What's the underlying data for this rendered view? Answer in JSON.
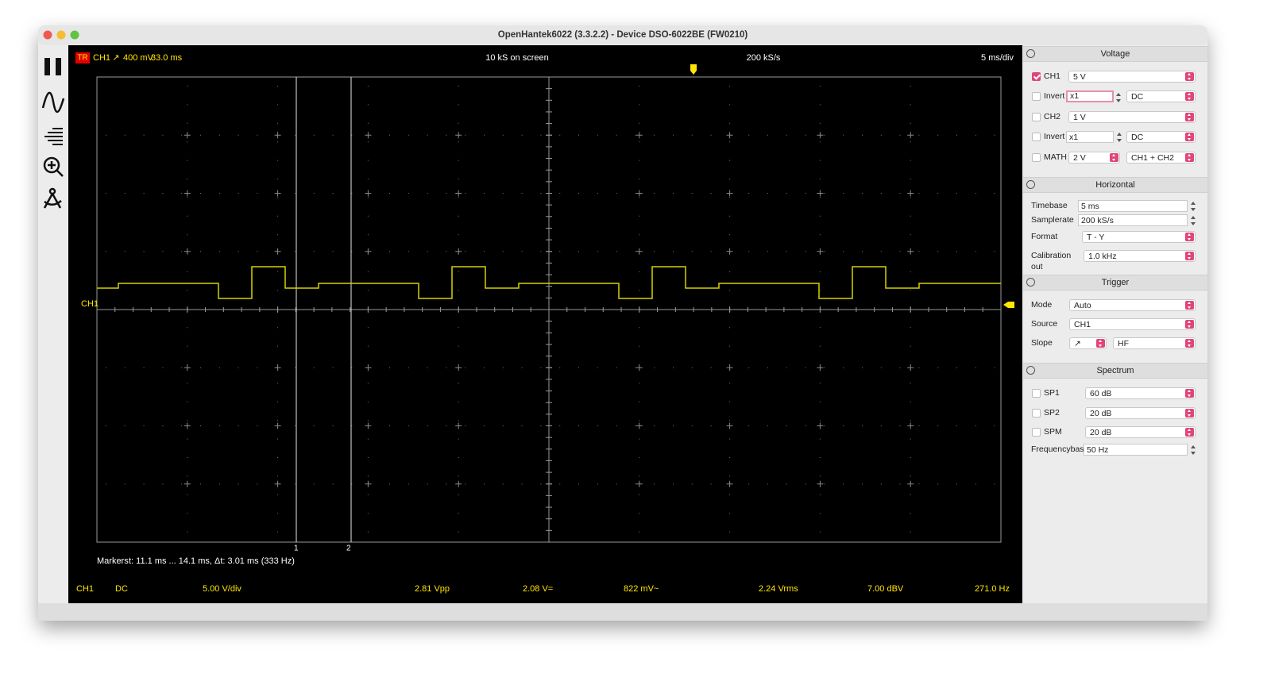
{
  "window_title": "OpenHantek6022 (3.3.2.2) - Device DSO-6022BE (FW0210)",
  "scope": {
    "trigger_badge": "TR",
    "trigger_channel": "CH1",
    "trigger_slope": "↗",
    "trigger_level": "400 mV",
    "trigger_position": "33.0 ms",
    "samples_on_screen": "10 kS on screen",
    "samplerate": "200 kS/s",
    "timebase": "5 ms/div",
    "channel_marker": "CH1",
    "marker_numbers": [
      "1",
      "2"
    ],
    "markers_label": "Markers",
    "markers_info": "t: 11.1 ms ... 14.1 ms,  Δt: 3.01 ms (333 Hz)"
  },
  "measurements": [
    "CH1",
    "DC",
    "5.00 V/div",
    "2.81 Vpp",
    "2.08 V=",
    "822 mV~",
    "2.24 Vrms",
    "7.00 dBV",
    "271.0 Hz"
  ],
  "panels": [
    {
      "title": "Voltage",
      "rows": [
        [
          {
            "type": "checkbox",
            "label": "CH1",
            "checked": true
          },
          {
            "type": "combo",
            "value": "5 V"
          }
        ],
        [
          {
            "type": "checkbox",
            "label": "Invert",
            "checked": false
          },
          {
            "type": "spin",
            "value": "x1",
            "focused": true
          },
          {
            "type": "combo",
            "value": "DC"
          }
        ],
        [
          {
            "type": "checkbox",
            "label": "CH2",
            "checked": false
          },
          {
            "type": "combo",
            "value": "1 V"
          }
        ],
        [
          {
            "type": "checkbox",
            "label": "Invert",
            "checked": false
          },
          {
            "type": "spin",
            "value": "x1"
          },
          {
            "type": "combo",
            "value": "DC"
          }
        ],
        [
          {
            "type": "checkbox",
            "label": "MATH",
            "checked": false
          },
          {
            "type": "combo",
            "value": "2 V"
          },
          {
            "type": "combo",
            "value": "CH1 + CH2"
          }
        ]
      ]
    },
    {
      "title": "Horizontal",
      "rows": [
        [
          {
            "type": "label",
            "text": "Timebase"
          },
          {
            "type": "spin",
            "value": "5 ms"
          }
        ],
        [
          {
            "type": "label",
            "text": "Samplerate"
          },
          {
            "type": "spin",
            "value": "200 kS/s"
          }
        ],
        [
          {
            "type": "label",
            "text": "Format"
          },
          {
            "type": "combo",
            "value": "T - Y"
          }
        ],
        [
          {
            "type": "label",
            "text": "Calibration out"
          },
          {
            "type": "combo",
            "value": "1.0 kHz"
          }
        ]
      ]
    },
    {
      "title": "Trigger",
      "rows": [
        [
          {
            "type": "label",
            "text": "Mode"
          },
          {
            "type": "combo",
            "value": "Auto"
          }
        ],
        [
          {
            "type": "label",
            "text": "Source"
          },
          {
            "type": "combo",
            "value": "CH1"
          }
        ],
        [
          {
            "type": "label",
            "text": "Slope"
          },
          {
            "type": "combo",
            "value": "↗"
          },
          {
            "type": "combo",
            "value": "HF"
          }
        ]
      ]
    },
    {
      "title": "Spectrum",
      "rows": [
        [
          {
            "type": "checkbox",
            "label": "SP1",
            "checked": false
          },
          {
            "type": "combo",
            "value": "60 dB"
          }
        ],
        [
          {
            "type": "checkbox",
            "label": "SP2",
            "checked": false
          },
          {
            "type": "combo",
            "value": "20 dB"
          }
        ],
        [
          {
            "type": "checkbox",
            "label": "SPM",
            "checked": false
          },
          {
            "type": "combo",
            "value": "20 dB"
          }
        ],
        [
          {
            "type": "label",
            "text": "Frequencybase"
          },
          {
            "type": "spin",
            "value": "50 Hz"
          }
        ]
      ]
    }
  ]
}
